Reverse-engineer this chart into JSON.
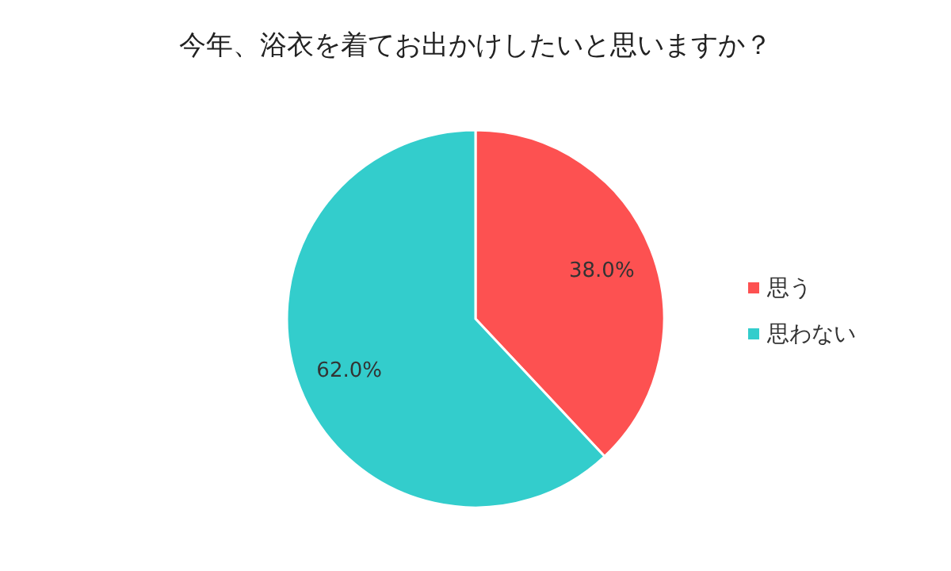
{
  "chart_data": {
    "type": "pie",
    "title": "今年、浴衣を着てお出かけしたいと思いますか？",
    "categories": [
      "思う",
      "思わない"
    ],
    "values": [
      38.0,
      62.0
    ],
    "colors": [
      "#fd5151",
      "#33cdcc"
    ],
    "value_labels": [
      "38.0%",
      "62.0%"
    ],
    "legend": "right"
  }
}
